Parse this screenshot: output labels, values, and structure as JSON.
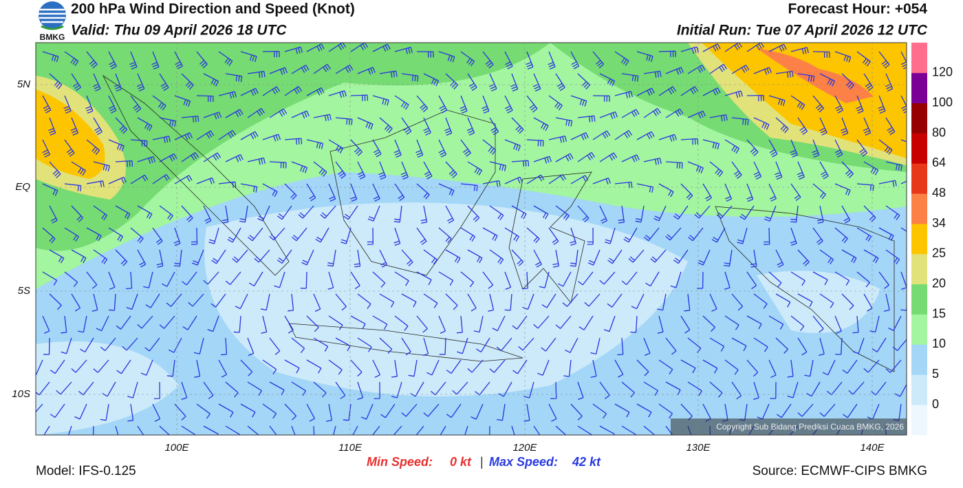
{
  "header": {
    "title": "200 hPa Wind Direction and Speed (Knot)",
    "valid": "Valid: Thu 09 April 2026 18 UTC",
    "forecast_hour": "Forecast Hour: +054",
    "initial_run": "Initial Run: Tue 07 April 2026 12 UTC",
    "logo_text": "BMKG"
  },
  "map": {
    "lat_labels": [
      "5N",
      "EQ",
      "5S",
      "10S"
    ],
    "lon_labels": [
      "100E",
      "110E",
      "120E",
      "130E",
      "140E"
    ],
    "copyright": "Copyright Sub Bidang Prediksi Cuaca BMKG, 2026"
  },
  "colorbar": {
    "labels": [
      "0",
      "5",
      "10",
      "15",
      "20",
      "25",
      "34",
      "48",
      "64",
      "80",
      "100",
      "120"
    ],
    "colors": [
      "#eef7fd",
      "#cdeafa",
      "#a3d6f7",
      "#a3f5a0",
      "#76db72",
      "#e2e27a",
      "#fcc500",
      "#fc8147",
      "#e8381a",
      "#c80000",
      "#960000",
      "#7a0096",
      "#ff6e8c"
    ]
  },
  "footer": {
    "model": "Model: IFS-0.125",
    "min_speed_label": "Min Speed:",
    "min_speed": "0 kt",
    "separator": "|",
    "max_speed_label": "Max Speed:",
    "max_speed": "42 kt",
    "source": "Source: ECMWF-CIPS BMKG"
  }
}
